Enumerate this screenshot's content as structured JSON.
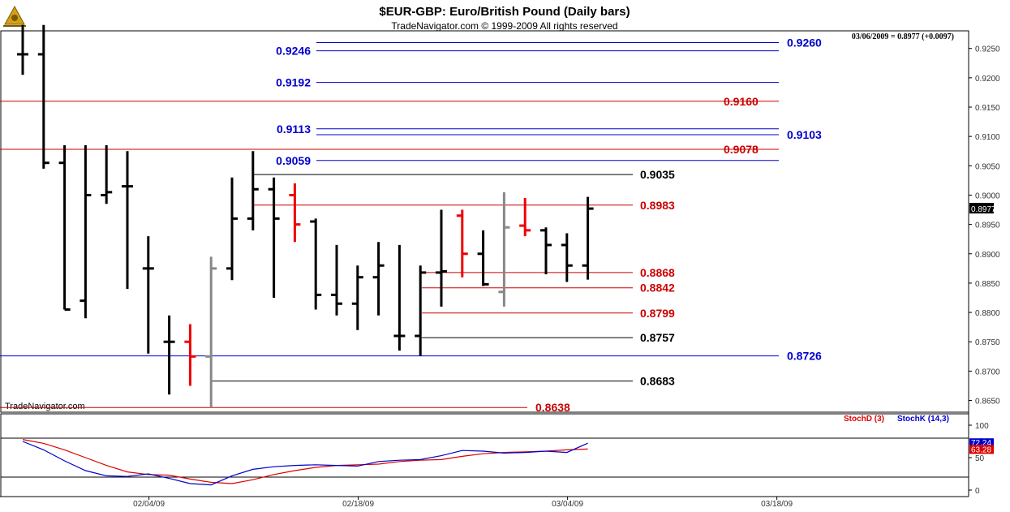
{
  "header": {
    "title": "$EUR-GBP:  Euro/British Pound  (Daily bars)",
    "subtitle": "TradeNavigator.com © 1999-2009 All rights reserved",
    "quote": "03/06/2009 = 0.8977 (+0.0097)",
    "watermark": "TradeNavigator.com",
    "logo_icon": "sextant-icon"
  },
  "chart_data": [
    {
      "type": "bar",
      "subtype": "ohlc",
      "title": "$EUR-GBP:  Euro/British Pound  (Daily bars)",
      "ylim": [
        0.863,
        0.928
      ],
      "y_ticks": [
        "0.9250",
        "0.9200",
        "0.9150",
        "0.9100",
        "0.9050",
        "0.9000",
        "0.8950",
        "0.8900",
        "0.8850",
        "0.8800",
        "0.8750",
        "0.8700",
        "0.8650"
      ],
      "x_tick_labels": [
        "02/04/09",
        "02/18/09",
        "03/04/09",
        "03/18/09"
      ],
      "x_tick_index": [
        7,
        17,
        27,
        37
      ],
      "last_price_label": "0.8977",
      "colors": {
        "up": "#000000",
        "down_red": "#ee0000",
        "doji_gray": "#888888"
      },
      "bars": [
        {
          "i": 0,
          "o": 0.924,
          "h": 0.929,
          "l": 0.9205,
          "c": 0.924,
          "color": "#000000"
        },
        {
          "i": 1,
          "o": 0.924,
          "h": 0.929,
          "l": 0.9045,
          "c": 0.9055,
          "color": "#000000"
        },
        {
          "i": 2,
          "o": 0.9055,
          "h": 0.9085,
          "l": 0.8805,
          "c": 0.8805,
          "color": "#000000"
        },
        {
          "i": 3,
          "o": 0.882,
          "h": 0.9085,
          "l": 0.879,
          "c": 0.9,
          "color": "#000000"
        },
        {
          "i": 4,
          "o": 0.9,
          "h": 0.9085,
          "l": 0.8985,
          "c": 0.9005,
          "color": "#000000"
        },
        {
          "i": 5,
          "o": 0.9015,
          "h": 0.9075,
          "l": 0.884,
          "c": 0.9015,
          "color": "#000000"
        },
        {
          "i": 6,
          "o": 0.8875,
          "h": 0.893,
          "l": 0.873,
          "c": 0.8875,
          "color": "#000000"
        },
        {
          "i": 7,
          "o": 0.875,
          "h": 0.8795,
          "l": 0.866,
          "c": 0.875,
          "color": "#000000"
        },
        {
          "i": 8,
          "o": 0.875,
          "h": 0.878,
          "l": 0.8675,
          "c": 0.8725,
          "color": "#ee0000"
        },
        {
          "i": 9,
          "o": 0.8725,
          "h": 0.8895,
          "l": 0.8638,
          "c": 0.8875,
          "color": "#888888"
        },
        {
          "i": 10,
          "o": 0.8875,
          "h": 0.903,
          "l": 0.8855,
          "c": 0.896,
          "color": "#000000"
        },
        {
          "i": 11,
          "o": 0.896,
          "h": 0.9075,
          "l": 0.894,
          "c": 0.901,
          "color": "#000000"
        },
        {
          "i": 12,
          "o": 0.901,
          "h": 0.903,
          "l": 0.8825,
          "c": 0.896,
          "color": "#000000"
        },
        {
          "i": 13,
          "o": 0.9,
          "h": 0.902,
          "l": 0.892,
          "c": 0.895,
          "color": "#ee0000"
        },
        {
          "i": 14,
          "o": 0.8955,
          "h": 0.896,
          "l": 0.8805,
          "c": 0.883,
          "color": "#000000"
        },
        {
          "i": 15,
          "o": 0.883,
          "h": 0.8915,
          "l": 0.8795,
          "c": 0.8815,
          "color": "#000000"
        },
        {
          "i": 16,
          "o": 0.8815,
          "h": 0.888,
          "l": 0.877,
          "c": 0.886,
          "color": "#000000"
        },
        {
          "i": 17,
          "o": 0.886,
          "h": 0.892,
          "l": 0.8795,
          "c": 0.888,
          "color": "#000000"
        },
        {
          "i": 18,
          "o": 0.876,
          "h": 0.8915,
          "l": 0.8735,
          "c": 0.876,
          "color": "#000000"
        },
        {
          "i": 19,
          "o": 0.876,
          "h": 0.888,
          "l": 0.8726,
          "c": 0.8868,
          "color": "#000000"
        },
        {
          "i": 20,
          "o": 0.8868,
          "h": 0.8975,
          "l": 0.881,
          "c": 0.887,
          "color": "#000000"
        },
        {
          "i": 21,
          "o": 0.8965,
          "h": 0.8975,
          "l": 0.886,
          "c": 0.89,
          "color": "#ee0000"
        },
        {
          "i": 22,
          "o": 0.89,
          "h": 0.894,
          "l": 0.8845,
          "c": 0.8848,
          "color": "#000000"
        },
        {
          "i": 23,
          "o": 0.8835,
          "h": 0.9005,
          "l": 0.881,
          "c": 0.8945,
          "color": "#888888"
        },
        {
          "i": 24,
          "o": 0.8948,
          "h": 0.8995,
          "l": 0.893,
          "c": 0.894,
          "color": "#ee0000"
        },
        {
          "i": 25,
          "o": 0.894,
          "h": 0.8945,
          "l": 0.8865,
          "c": 0.8915,
          "color": "#000000"
        },
        {
          "i": 26,
          "o": 0.8915,
          "h": 0.8935,
          "l": 0.8852,
          "c": 0.888,
          "color": "#000000"
        },
        {
          "i": 27,
          "o": 0.888,
          "h": 0.8997,
          "l": 0.8856,
          "c": 0.8977,
          "color": "#000000"
        }
      ],
      "levels": [
        {
          "value": 0.926,
          "label": "0.9260",
          "color": "#0000cc",
          "span": "right"
        },
        {
          "value": 0.9246,
          "label": "0.9246",
          "color": "#0000cc",
          "span": "left"
        },
        {
          "value": 0.9192,
          "label": "0.9192",
          "color": "#0000cc",
          "span": "left"
        },
        {
          "value": 0.916,
          "label": "0.9160",
          "color": "#cc0000",
          "span": "full"
        },
        {
          "value": 0.9113,
          "label": "0.9113",
          "color": "#0000cc",
          "span": "left"
        },
        {
          "value": 0.9103,
          "label": "0.9103",
          "color": "#0000cc",
          "span": "right"
        },
        {
          "value": 0.9078,
          "label": "0.9078",
          "color": "#cc0000",
          "span": "full"
        },
        {
          "value": 0.9059,
          "label": "0.9059",
          "color": "#0000cc",
          "span": "left"
        },
        {
          "value": 0.9035,
          "label": "0.9035",
          "color": "#000000",
          "span": "mid"
        },
        {
          "value": 0.8983,
          "label": "0.8983",
          "color": "#cc0000",
          "span": "mid"
        },
        {
          "value": 0.8868,
          "label": "0.8868",
          "color": "#cc0000",
          "span": "mid"
        },
        {
          "value": 0.8842,
          "label": "0.8842",
          "color": "#cc0000",
          "span": "mid"
        },
        {
          "value": 0.8799,
          "label": "0.8799",
          "color": "#cc0000",
          "span": "mid"
        },
        {
          "value": 0.8757,
          "label": "0.8757",
          "color": "#000000",
          "span": "mid"
        },
        {
          "value": 0.8726,
          "label": "0.8726",
          "color": "#0000cc",
          "span": "right"
        },
        {
          "value": 0.8683,
          "label": "0.8683",
          "color": "#000000",
          "span": "mid"
        },
        {
          "value": 0.8638,
          "label": "0.8638",
          "color": "#cc0000",
          "span": "low"
        }
      ]
    },
    {
      "type": "line",
      "ylim": [
        0,
        100
      ],
      "y_ticks": [
        "100",
        "50",
        "0"
      ],
      "reference_lines": [
        80,
        20
      ],
      "legend": [
        {
          "name": "StochD (3)",
          "color": "#dd0000"
        },
        {
          "name": "StochK (14,3)",
          "color": "#0000cc"
        }
      ],
      "value_labels": [
        "63.28",
        "72.24"
      ],
      "series": [
        {
          "name": "StochD (3)",
          "color": "#dd0000",
          "values": [
            78,
            72,
            62,
            50,
            38,
            28,
            24,
            23,
            17,
            12,
            10,
            16,
            24,
            30,
            35,
            38,
            39,
            40,
            44,
            46,
            47,
            52,
            56,
            58,
            59,
            60,
            62,
            63.28
          ]
        },
        {
          "name": "StochK (14,3)",
          "color": "#0000cc",
          "values": [
            75,
            62,
            45,
            30,
            22,
            21,
            25,
            18,
            10,
            8,
            22,
            32,
            36,
            38,
            39,
            38,
            37,
            44,
            46,
            47,
            53,
            61,
            60,
            57,
            58,
            60,
            58,
            72.24
          ]
        }
      ]
    }
  ]
}
